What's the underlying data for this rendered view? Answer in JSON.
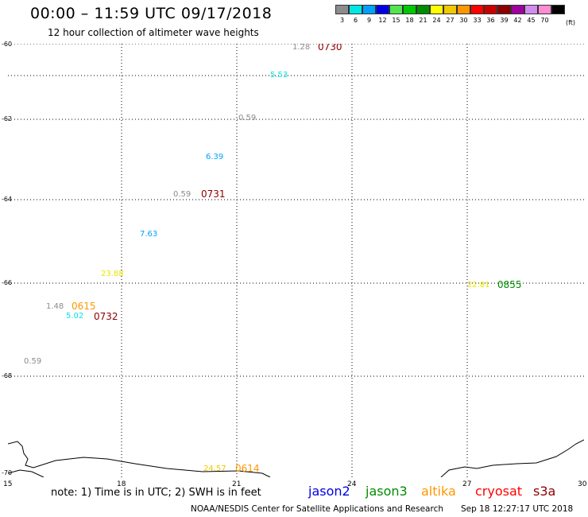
{
  "header": {
    "title": "00:00 – 11:59 UTC 09/17/2018",
    "subtitle": "12 hour collection of altimeter wave heights"
  },
  "colorbar": {
    "unit": "(ft)",
    "items": [
      {
        "label": "3",
        "color": "#8c8c8c"
      },
      {
        "label": "6",
        "color": "#00e6e6"
      },
      {
        "label": "9",
        "color": "#00a0ff"
      },
      {
        "label": "12",
        "color": "#0000e6"
      },
      {
        "label": "15",
        "color": "#50e650"
      },
      {
        "label": "18",
        "color": "#00c800"
      },
      {
        "label": "21",
        "color": "#008c00"
      },
      {
        "label": "24",
        "color": "#ffff00"
      },
      {
        "label": "27",
        "color": "#f0c800"
      },
      {
        "label": "30",
        "color": "#ff9600"
      },
      {
        "label": "33",
        "color": "#ff0000"
      },
      {
        "label": "36",
        "color": "#c80000"
      },
      {
        "label": "39",
        "color": "#8c0000"
      },
      {
        "label": "42",
        "color": "#a000a0"
      },
      {
        "label": "45",
        "color": "#d28cf0"
      },
      {
        "label": "70",
        "color": "#ff8cd2"
      },
      {
        "label": "",
        "color": "#000000"
      }
    ]
  },
  "map": {
    "lon_labels": [
      "15",
      "18",
      "21",
      "24",
      "27",
      "30"
    ],
    "lat_labels": [
      "-60",
      "-62",
      "-64",
      "-66",
      "-68",
      "-70"
    ],
    "wave_heights": [
      {
        "text": "1.28",
        "color": "#8c8c8c"
      },
      {
        "text": "5.53",
        "color": "#00e6e6"
      },
      {
        "text": "0.59",
        "color": "#8c8c8c"
      },
      {
        "text": "6.39",
        "color": "#00a0ff"
      },
      {
        "text": "0.59",
        "color": "#8c8c8c"
      },
      {
        "text": "7.63",
        "color": "#00a0ff"
      },
      {
        "text": "23.88",
        "color": "#ffff00"
      },
      {
        "text": "1.48",
        "color": "#8c8c8c"
      },
      {
        "text": "5.02",
        "color": "#00e6e6"
      },
      {
        "text": "0.59",
        "color": "#8c8c8c"
      },
      {
        "text": "22.81",
        "color": "#ffff00"
      },
      {
        "text": "24.57",
        "color": "#f0c800"
      }
    ],
    "pass_times": [
      {
        "text": "0730",
        "color": "#8c0000"
      },
      {
        "text": "0731",
        "color": "#8c0000"
      },
      {
        "text": "0615",
        "color": "#ff9600"
      },
      {
        "text": "0732",
        "color": "#8c0000"
      },
      {
        "text": "0855",
        "color": "#008c00"
      },
      {
        "text": "0614",
        "color": "#ff9600"
      }
    ]
  },
  "footer": {
    "note": "note: 1) Time is in UTC; 2) SWH is in feet",
    "satellites": [
      {
        "name": "jason2",
        "color": "#0000e6"
      },
      {
        "name": "jason3",
        "color": "#008c00"
      },
      {
        "name": "altika",
        "color": "#ff9600"
      },
      {
        "name": "cryosat",
        "color": "#ff0000"
      },
      {
        "name": "s3a",
        "color": "#8c0000"
      }
    ],
    "credit": "NOAA/NESDIS Center for Satellite Applications and Research",
    "timestamp": "Sep 18 12:27:17 UTC 2018"
  }
}
